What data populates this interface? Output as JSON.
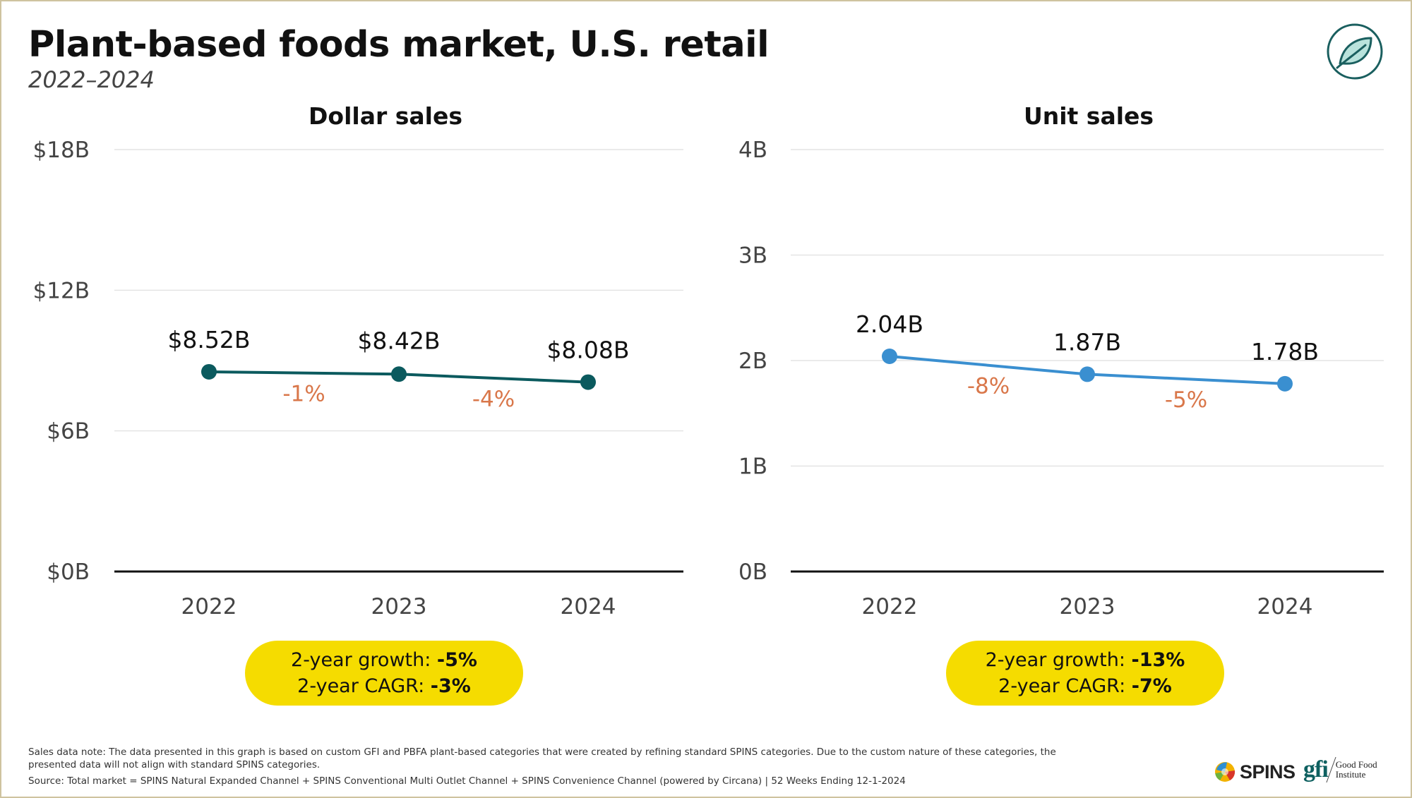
{
  "header": {
    "title": "Plant-based foods market, U.S. retail",
    "subtitle": "2022–2024"
  },
  "colors": {
    "dollar_line": "#0b5a5e",
    "unit_line": "#3a8fd0",
    "growth_label": "#d9774a",
    "callout_bg": "#f5dc00",
    "grid": "#e4e4e4",
    "axis": "#111111",
    "leaf_circle": "#1a5f5f",
    "leaf_fill": "#b9e3dc"
  },
  "icons": {
    "header_logo": "leaf-icon",
    "spins_logo": "spins-globe-icon"
  },
  "chart_data": [
    {
      "type": "line",
      "title": "Dollar sales",
      "categories": [
        "2022",
        "2023",
        "2024"
      ],
      "series": [
        {
          "name": "Dollar sales",
          "values": [
            8.52,
            8.42,
            8.08
          ]
        }
      ],
      "data_labels": [
        "$8.52B",
        "$8.42B",
        "$8.08B"
      ],
      "growth_labels": [
        "-1%",
        "-4%"
      ],
      "ylim": [
        0,
        18
      ],
      "yticks": [
        0,
        6,
        12,
        18
      ],
      "ytick_labels": [
        "$0B",
        "$6B",
        "$12B",
        "$18B"
      ],
      "xlabel": "",
      "ylabel": "",
      "grid": true,
      "summary": {
        "growth_label": "2-year growth:",
        "growth_value": "-5%",
        "cagr_label": "2-year CAGR:",
        "cagr_value": "-3%"
      }
    },
    {
      "type": "line",
      "title": "Unit sales",
      "categories": [
        "2022",
        "2023",
        "2024"
      ],
      "series": [
        {
          "name": "Unit sales",
          "values": [
            2.04,
            1.87,
            1.78
          ]
        }
      ],
      "data_labels": [
        "2.04B",
        "1.87B",
        "1.78B"
      ],
      "growth_labels": [
        "-8%",
        "-5%"
      ],
      "ylim": [
        0,
        4
      ],
      "yticks": [
        0,
        1,
        2,
        3,
        4
      ],
      "ytick_labels": [
        "0B",
        "1B",
        "2B",
        "3B",
        "4B"
      ],
      "xlabel": "",
      "ylabel": "",
      "grid": true,
      "summary": {
        "growth_label": "2-year growth:",
        "growth_value": "-13%",
        "cagr_label": "2-year CAGR:",
        "cagr_value": "-7%"
      }
    }
  ],
  "footer": {
    "note": "Sales data note: The data presented in this graph is based on custom GFI and PBFA plant-based categories that were created by refining standard SPINS categories. Due to the custom nature of these categories, the presented data will not align with standard SPINS categories.",
    "source": "Source: Total market = SPINS Natural Expanded Channel + SPINS Conventional Multi Outlet Channel + SPINS Convenience Channel (powered by Circana) | 52 Weeks Ending 12-1-2024",
    "spins_logo_text": "SPINS",
    "gfi_mark": "gfi",
    "gfi_name_line1": "Good Food",
    "gfi_name_line2": "Institute"
  }
}
